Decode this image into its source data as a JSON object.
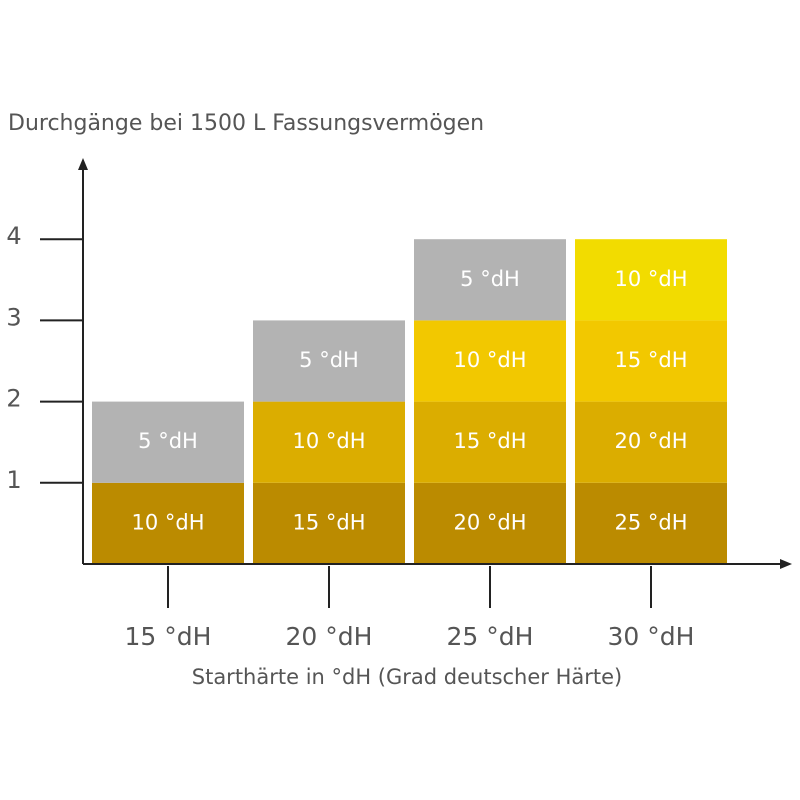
{
  "chart_data": {
    "type": "stacked_bar",
    "title": "Durchgänge bei 1500 L Fassungsvermögen",
    "x_label": "Starthärte in °dH (Grad deutscher Härte)",
    "categories": [
      "15 °dH",
      "20 °dH",
      "25 °dH",
      "30 °dH"
    ],
    "series": [
      {
        "values": [
          1,
          1,
          1,
          1
        ],
        "colors": [
          "#bb8b00",
          "#bb8b00",
          "#bb8b00",
          "#bb8b00"
        ],
        "segment_labels": [
          "10 °dH",
          "15 °dH",
          "20 °dH",
          "25 °dH"
        ]
      },
      {
        "values": [
          1,
          1,
          1,
          1
        ],
        "colors": [
          "#b3b3b3",
          "#dbad00",
          "#dbad00",
          "#dbad00"
        ],
        "segment_labels": [
          "5 °dH",
          "10 °dH",
          "15 °dH",
          "20 °dH"
        ]
      },
      {
        "values": [
          null,
          1,
          1,
          1
        ],
        "colors": [
          null,
          "#b3b3b3",
          "#f2c800",
          "#f2c800"
        ],
        "segment_labels": [
          null,
          "5 °dH",
          "10 °dH",
          "15 °dH"
        ]
      },
      {
        "values": [
          null,
          null,
          1,
          1
        ],
        "colors": [
          null,
          null,
          "#b3b3b3",
          "#f2dc00"
        ],
        "segment_labels": [
          null,
          null,
          "5 °dH",
          "10 °dH"
        ]
      }
    ],
    "ylim": [
      0,
      5
    ],
    "yticks": [
      1,
      2,
      3,
      4
    ]
  }
}
